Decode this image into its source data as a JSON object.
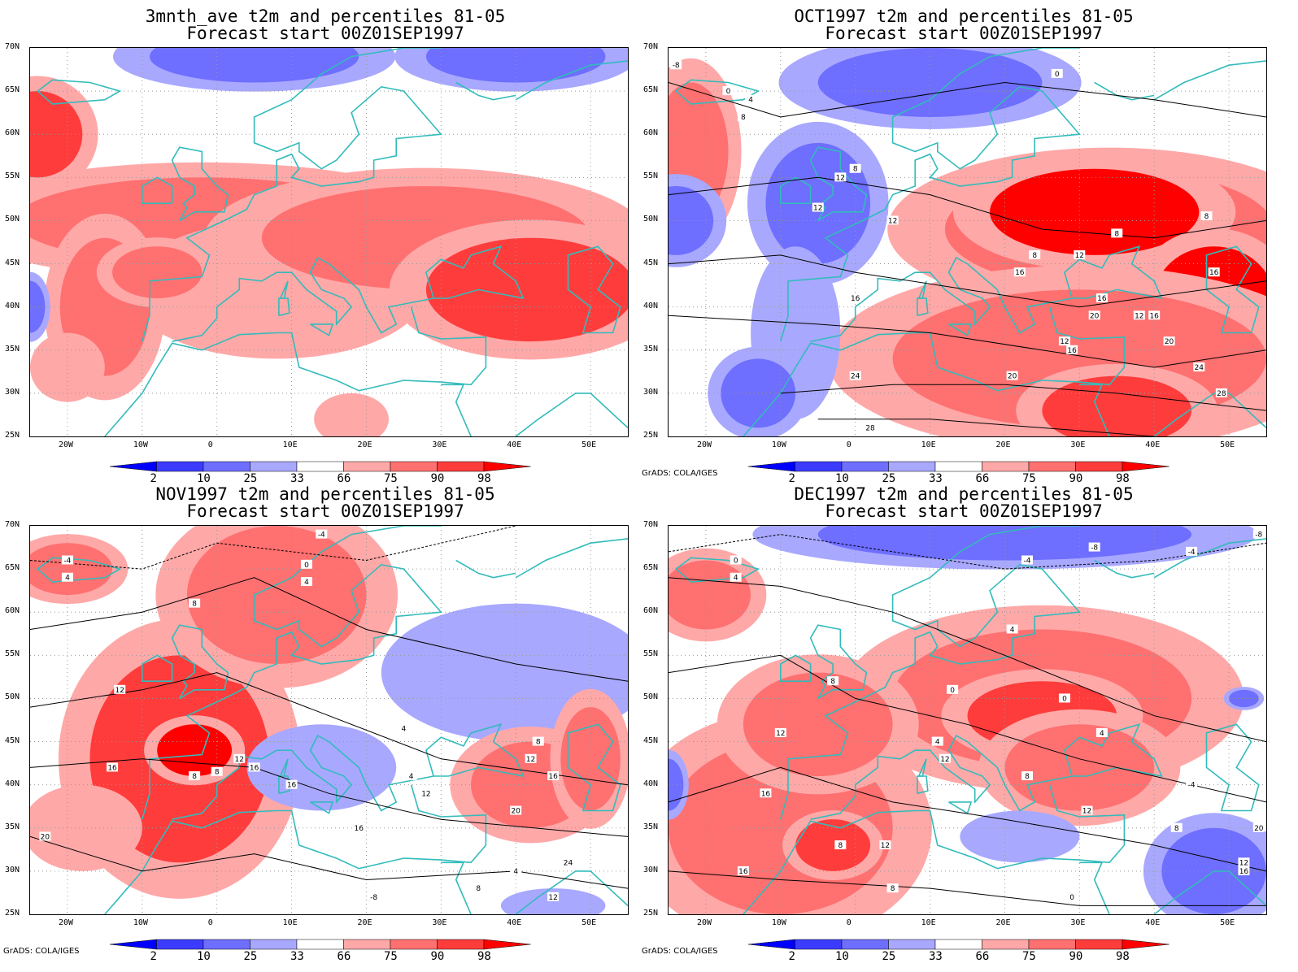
{
  "panels": [
    {
      "title": "3mnth_ave t2m and percentiles 81-05",
      "subtitle": "Forecast start 00Z01SEP1997",
      "footer": ""
    },
    {
      "title": "OCT1997 t2m and percentiles 81-05",
      "subtitle": "Forecast start 00Z01SEP1997",
      "footer": "GrADS: COLA/IGES"
    },
    {
      "title": "NOV1997 t2m and percentiles 81-05",
      "subtitle": "Forecast start 00Z01SEP1997",
      "footer": "GrADS: COLA/IGES"
    },
    {
      "title": "DEC1997 t2m and percentiles 81-05",
      "subtitle": "Forecast start 00Z01SEP1997",
      "footer": "GrADS: COLA/IGES"
    }
  ],
  "lat_labels": [
    "70N",
    "65N",
    "60N",
    "55N",
    "50N",
    "45N",
    "40N",
    "35N",
    "30N",
    "25N"
  ],
  "lon_labels": [
    "20W",
    "10W",
    "0",
    "10E",
    "20E",
    "30E",
    "40E",
    "50E"
  ],
  "colorbar": {
    "labels": [
      "2",
      "10",
      "25",
      "33",
      "66",
      "75",
      "90",
      "98"
    ],
    "colors": [
      "#0000ff",
      "#3c3cff",
      "#6e6eff",
      "#a8a8ff",
      "#ffffff",
      "#ffa8a8",
      "#ff7070",
      "#ff3c3c",
      "#ff0000"
    ]
  },
  "colors": {
    "coast": "#33bbbb",
    "contour": "#000000",
    "grid": "#999999"
  },
  "chart_data": [
    {
      "type": "heatmap",
      "title": "3mnth_ave t2m and percentiles 81-05",
      "lat_range": [
        25,
        70
      ],
      "lon_range": [
        -25,
        55
      ],
      "contour_labels": []
    },
    {
      "type": "heatmap",
      "title": "OCT1997 t2m and percentiles 81-05",
      "lat_range": [
        25,
        70
      ],
      "lon_range": [
        -25,
        55
      ],
      "contour_labels": [
        "-8",
        "0",
        "4",
        "8",
        "8",
        "12",
        "12",
        "8",
        "8",
        "12",
        "16",
        "16",
        "20",
        "16",
        "12",
        "16",
        "12",
        "8",
        "16",
        "20",
        "20",
        "24",
        "28",
        "24",
        "28",
        "0",
        "12",
        "16"
      ]
    },
    {
      "type": "heatmap",
      "title": "NOV1997 t2m and percentiles 81-05",
      "lat_range": [
        25,
        70
      ],
      "lon_range": [
        -25,
        55
      ],
      "contour_labels": [
        "-4",
        "4",
        "-4",
        "0",
        "4",
        "8",
        "4",
        "12",
        "8",
        "16",
        "8",
        "12",
        "16",
        "12",
        "16",
        "20",
        "16",
        "4",
        "8",
        "12",
        "16",
        "20",
        "24",
        "4",
        "8",
        "12",
        "-8"
      ]
    },
    {
      "type": "heatmap",
      "title": "DEC1997 t2m and percentiles 81-05",
      "lat_range": [
        25,
        70
      ],
      "lon_range": [
        -25,
        55
      ],
      "contour_labels": [
        "-8",
        "-4",
        "-8",
        "-4",
        "0",
        "4",
        "4",
        "8",
        "0",
        "12",
        "4",
        "12",
        "16",
        "8",
        "12",
        "16",
        "8",
        "12",
        "8",
        "0",
        "4",
        "-4",
        "8",
        "20",
        "12",
        "16",
        "0"
      ]
    }
  ]
}
